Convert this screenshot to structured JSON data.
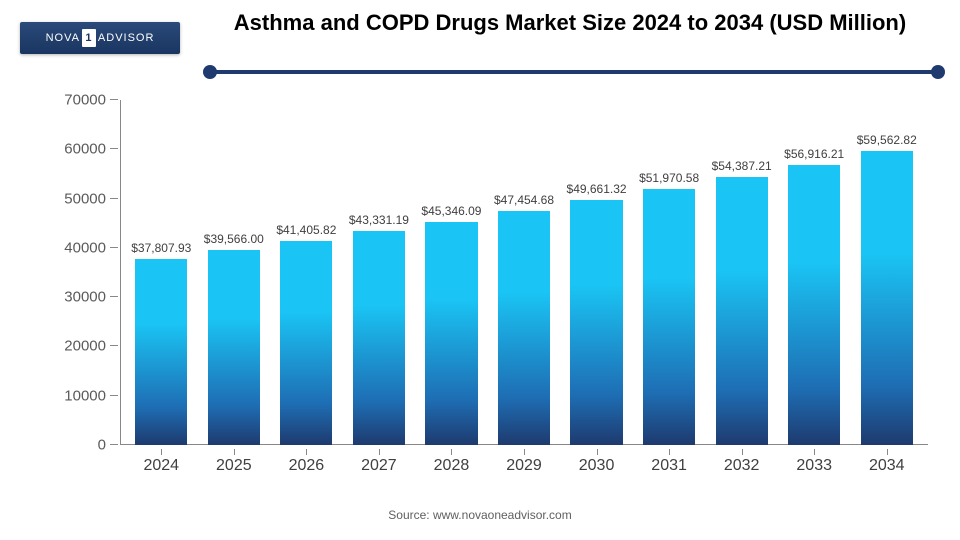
{
  "logo": {
    "prefix": "NOVA",
    "one": "1",
    "suffix": "ADVISOR"
  },
  "title": "Asthma and COPD Drugs Market Size 2024 to 2034 (USD Million)",
  "source": "Source: www.novaoneadvisor.com",
  "chart": {
    "type": "bar",
    "ylim": [
      0,
      70000
    ],
    "ytick_step": 10000,
    "yticks": [
      "0",
      "10000",
      "20000",
      "30000",
      "40000",
      "50000",
      "60000",
      "70000"
    ],
    "categories": [
      "2024",
      "2025",
      "2026",
      "2027",
      "2028",
      "2029",
      "2030",
      "2031",
      "2032",
      "2033",
      "2034"
    ],
    "values": [
      37807.93,
      39566.0,
      41405.82,
      43331.19,
      45346.09,
      47454.68,
      49661.32,
      51970.58,
      54387.21,
      56916.21,
      59562.82
    ],
    "value_labels": [
      "$37,807.93",
      "$39,566.00",
      "$41,405.82",
      "$43,331.19",
      "$45,346.09",
      "$47,454.68",
      "$49,661.32",
      "$51,970.58",
      "$54,387.21",
      "$56,916.21",
      "$59,562.82"
    ],
    "bar_gradient_top": "#1ac4f4",
    "bar_gradient_bottom": "#1e3a6e",
    "axis_color": "#888888",
    "text_color": "#404040",
    "background_color": "#ffffff",
    "title_color": "#000000",
    "underline_color": "#1e3a6e",
    "title_fontsize": 22,
    "xlabel_fontsize": 16,
    "ylabel_fontsize": 15,
    "value_label_fontsize": 12,
    "bar_width_ratio": 0.72
  }
}
